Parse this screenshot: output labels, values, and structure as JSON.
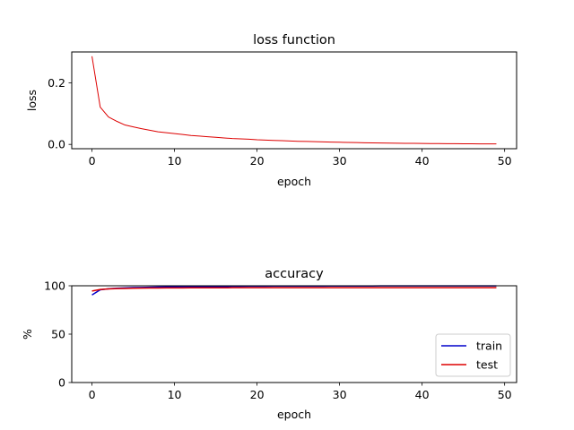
{
  "chart_data": [
    {
      "type": "line",
      "title": "loss function",
      "xlabel": "epoch",
      "ylabel": "loss",
      "xlim": [
        -2.45,
        51.45
      ],
      "ylim": [
        -0.014,
        0.3
      ],
      "xticks": [
        0,
        10,
        20,
        30,
        40,
        50
      ],
      "yticks": [
        0.0,
        0.2
      ],
      "ytick_labels": [
        "0.0",
        "0.2"
      ],
      "grid": false,
      "series": [
        {
          "color": "#dd0000",
          "x": [
            0,
            1,
            2,
            3,
            4,
            5,
            6,
            7,
            8,
            9,
            10,
            11,
            12,
            13,
            14,
            15,
            16,
            17,
            18,
            19,
            20,
            21,
            22,
            23,
            24,
            25,
            26,
            27,
            28,
            29,
            30,
            31,
            32,
            33,
            34,
            35,
            36,
            37,
            38,
            39,
            40,
            41,
            42,
            43,
            44,
            45,
            46,
            47,
            48,
            49
          ],
          "values": [
            0.286,
            0.121,
            0.089,
            0.075,
            0.063,
            0.057,
            0.051,
            0.046,
            0.041,
            0.038,
            0.035,
            0.032,
            0.029,
            0.027,
            0.025,
            0.023,
            0.021,
            0.019,
            0.018,
            0.017,
            0.015,
            0.014,
            0.013,
            0.012,
            0.011,
            0.01,
            0.0095,
            0.0088,
            0.0082,
            0.0075,
            0.0069,
            0.0064,
            0.0059,
            0.0054,
            0.005,
            0.0046,
            0.0042,
            0.0039,
            0.0036,
            0.0033,
            0.003,
            0.0028,
            0.0026,
            0.0024,
            0.0022,
            0.002,
            0.0019,
            0.0018,
            0.0017,
            0.0016
          ]
        }
      ]
    },
    {
      "type": "line",
      "title": "accuracy",
      "xlabel": "epoch",
      "ylabel": "%",
      "xlim": [
        -2.45,
        51.45
      ],
      "ylim": [
        0,
        100
      ],
      "xticks": [
        0,
        10,
        20,
        30,
        40,
        50
      ],
      "yticks": [
        0,
        50,
        100
      ],
      "ytick_labels": [
        "0",
        "50",
        "100"
      ],
      "grid": false,
      "legend_position": "lower-right",
      "series": [
        {
          "name": "train",
          "color": "#0000cc",
          "x": [
            0,
            1,
            2,
            3,
            4,
            5,
            6,
            7,
            8,
            9,
            10,
            11,
            12,
            13,
            14,
            15,
            16,
            17,
            18,
            19,
            20,
            21,
            22,
            23,
            24,
            25,
            26,
            27,
            28,
            29,
            30,
            31,
            32,
            33,
            34,
            35,
            36,
            37,
            38,
            39,
            40,
            41,
            42,
            43,
            44,
            45,
            46,
            47,
            48,
            49
          ],
          "values": [
            90.5,
            95.8,
            96.9,
            97.4,
            97.8,
            98.1,
            98.3,
            98.5,
            98.7,
            98.8,
            98.9,
            99.0,
            99.1,
            99.2,
            99.2,
            99.3,
            99.3,
            99.4,
            99.4,
            99.5,
            99.5,
            99.5,
            99.6,
            99.6,
            99.6,
            99.7,
            99.7,
            99.7,
            99.7,
            99.8,
            99.8,
            99.8,
            99.8,
            99.8,
            99.8,
            99.9,
            99.9,
            99.9,
            99.9,
            99.9,
            99.9,
            99.9,
            99.9,
            99.9,
            99.9,
            99.9,
            99.9,
            99.9,
            99.9,
            99.9
          ]
        },
        {
          "name": "test",
          "color": "#dd0000",
          "x": [
            0,
            1,
            2,
            3,
            4,
            5,
            6,
            7,
            8,
            9,
            10,
            11,
            12,
            13,
            14,
            15,
            16,
            17,
            18,
            19,
            20,
            21,
            22,
            23,
            24,
            25,
            26,
            27,
            28,
            29,
            30,
            31,
            32,
            33,
            34,
            35,
            36,
            37,
            38,
            39,
            40,
            41,
            42,
            43,
            44,
            45,
            46,
            47,
            48,
            49
          ],
          "values": [
            94.6,
            96.2,
            96.8,
            97.1,
            97.2,
            97.4,
            97.6,
            97.7,
            97.7,
            97.8,
            97.8,
            97.8,
            97.9,
            97.9,
            97.9,
            97.9,
            97.9,
            98.0,
            98.0,
            98.0,
            98.0,
            98.0,
            98.0,
            98.0,
            98.0,
            98.0,
            98.0,
            98.0,
            98.0,
            98.0,
            98.0,
            98.0,
            98.0,
            98.0,
            98.0,
            98.0,
            98.0,
            98.0,
            98.0,
            98.0,
            98.0,
            98.0,
            98.0,
            98.0,
            98.0,
            98.0,
            98.0,
            98.0,
            98.0,
            98.0
          ]
        }
      ]
    }
  ]
}
